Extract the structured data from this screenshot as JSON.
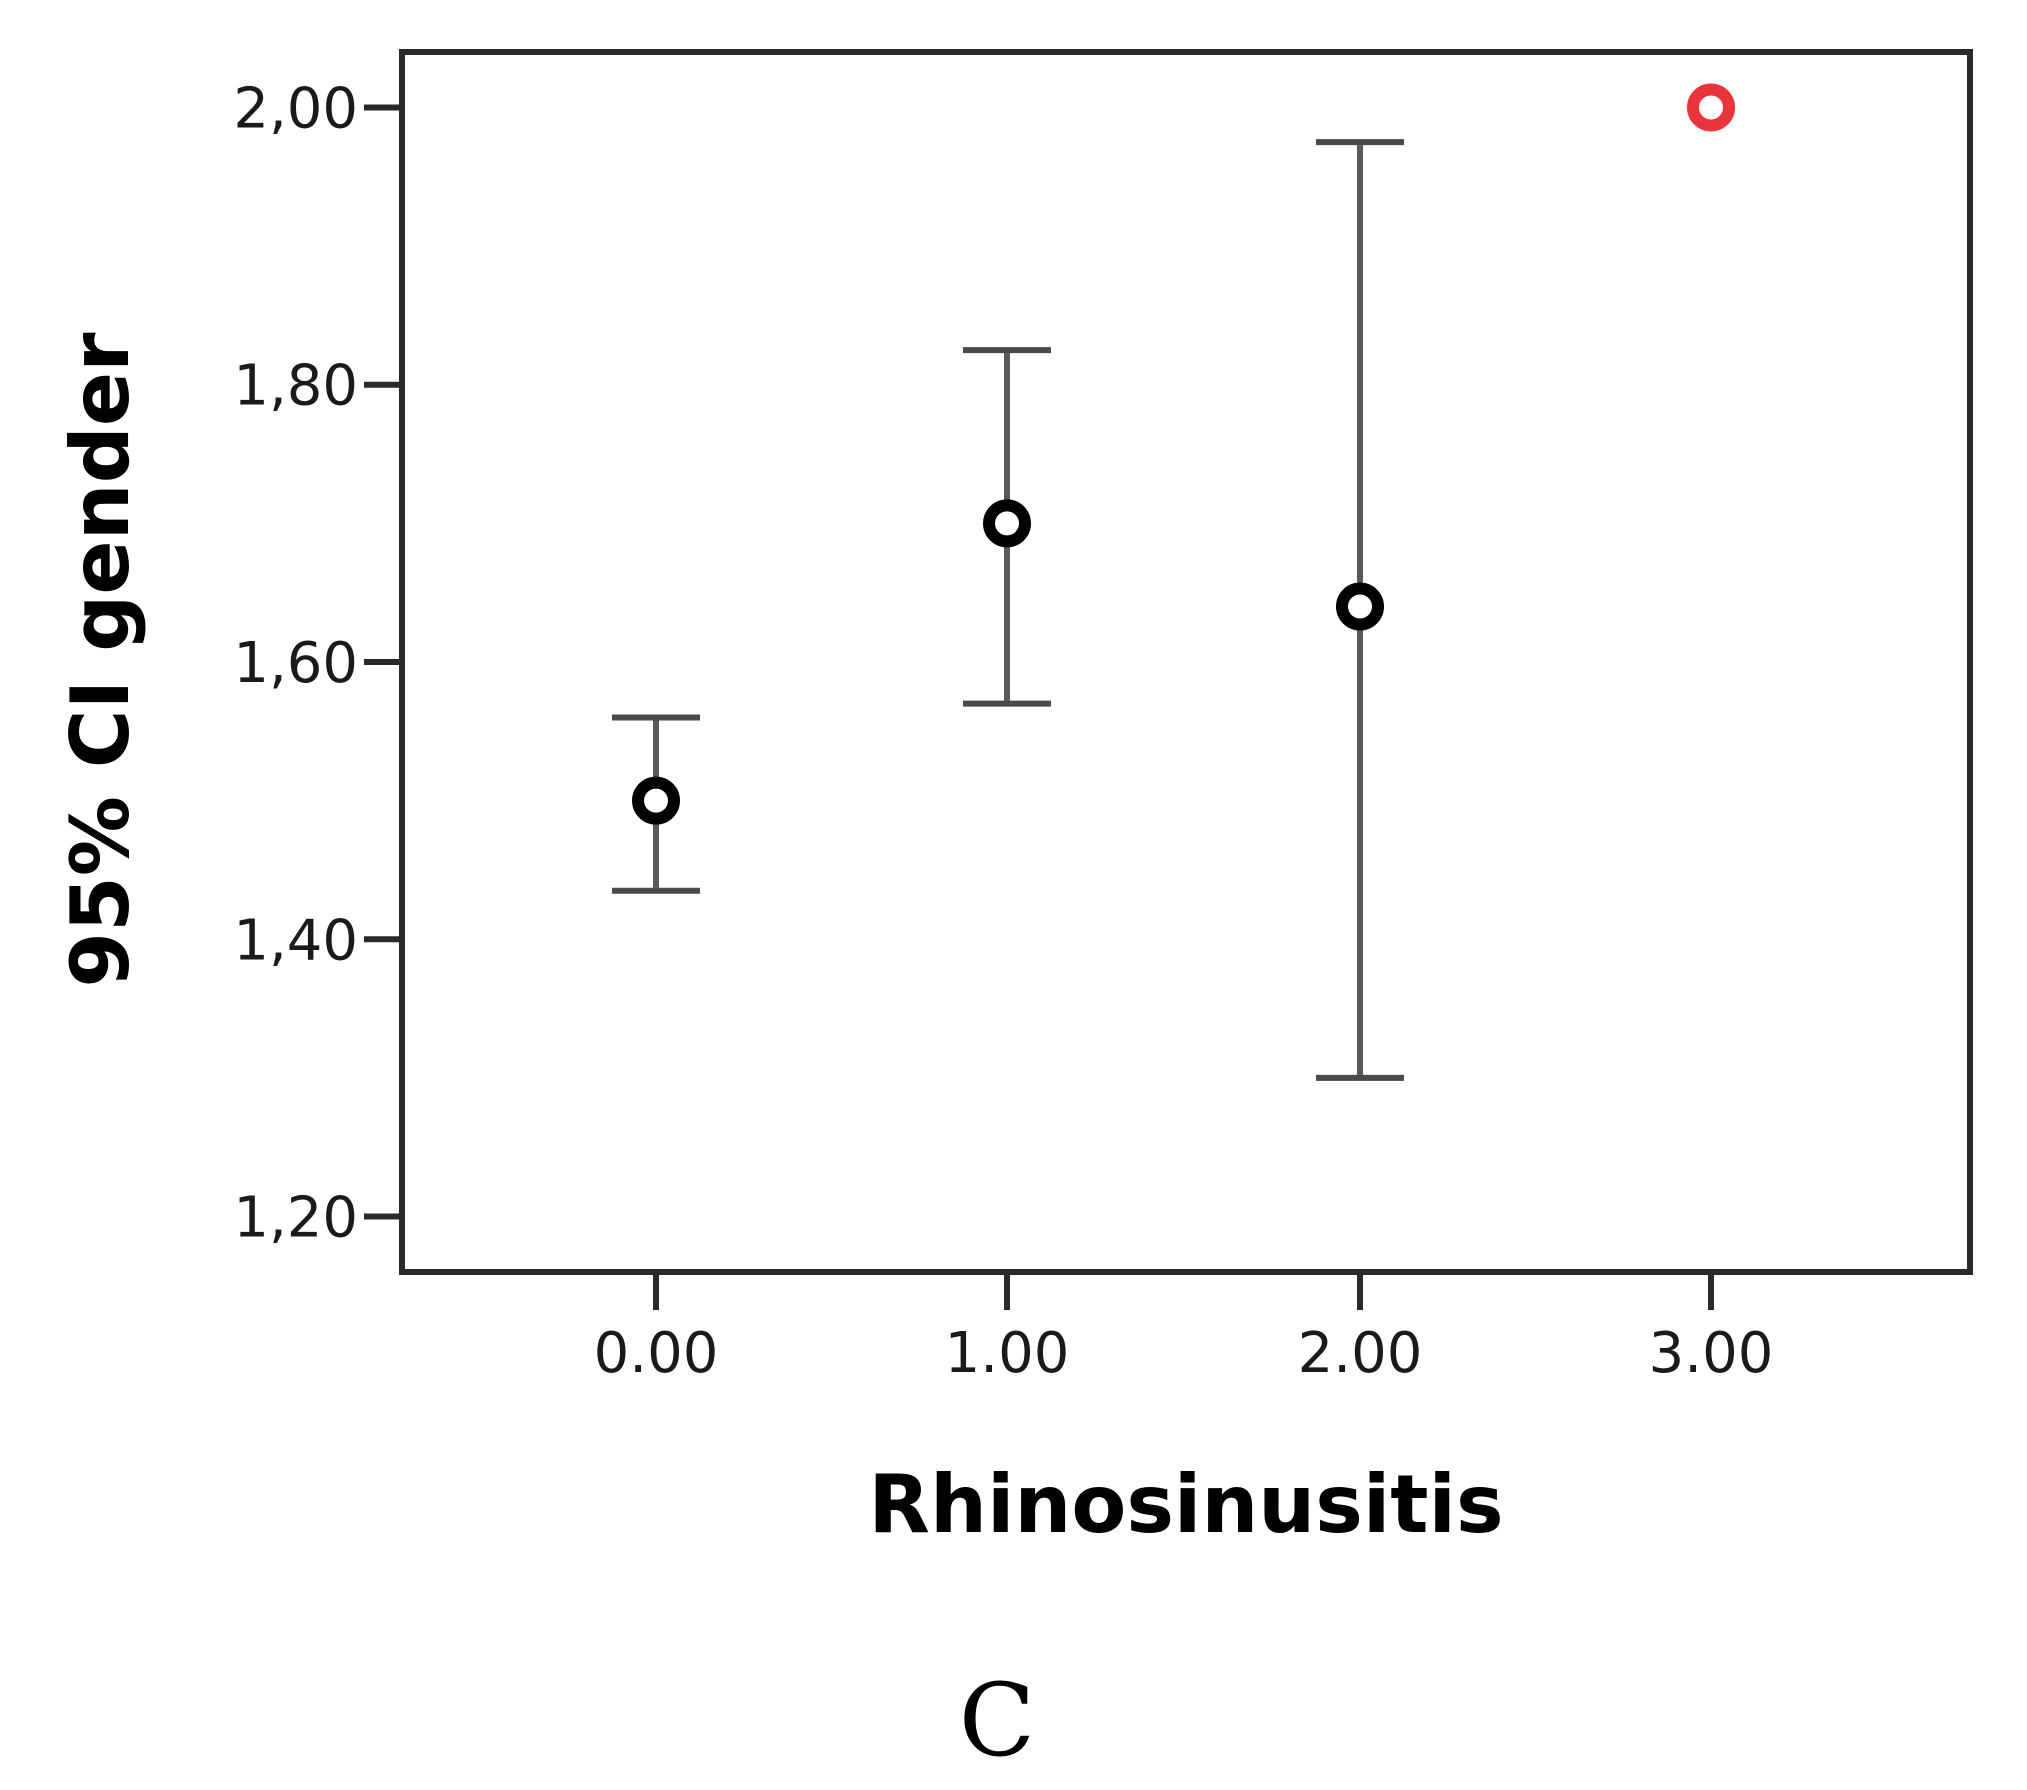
{
  "chart_data": {
    "type": "scatter",
    "xlabel": "Rhinosinusitis",
    "ylabel": "95% CI gender",
    "panel_label": "C",
    "x_ticks": [
      "0.00",
      "1.00",
      "2.00",
      "3.00"
    ],
    "y_ticks": [
      "1,20",
      "1,40",
      "1,60",
      "1,80",
      "2,00"
    ],
    "ylim": [
      1.16,
      2.04
    ],
    "grid": false,
    "points": [
      {
        "x": 0,
        "mean": 1.5,
        "lower": 1.435,
        "upper": 1.56,
        "color": "#000000"
      },
      {
        "x": 1,
        "mean": 1.7,
        "lower": 1.57,
        "upper": 1.825,
        "color": "#000000"
      },
      {
        "x": 2,
        "mean": 1.64,
        "lower": 1.3,
        "upper": 1.975,
        "color": "#000000"
      },
      {
        "x": 3,
        "mean": 2.0,
        "lower": null,
        "upper": null,
        "color": "#e8343a"
      }
    ]
  }
}
